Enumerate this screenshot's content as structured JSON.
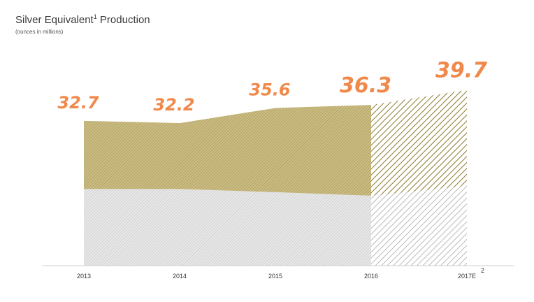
{
  "header": {
    "title": "Silver Equivalent",
    "title_footnote": "1",
    "title_suffix": " Production",
    "subtitle": "(ounces in millions)"
  },
  "chart_data": {
    "type": "area",
    "title": "Silver Equivalent¹ Production",
    "subtitle": "(ounces in millions)",
    "categories": [
      "2013",
      "2014",
      "2015",
      "2016",
      "2017E"
    ],
    "x_label_footnotes": [
      "",
      "",
      "",
      "",
      "2"
    ],
    "estimate_from_index": 3,
    "totals": [
      32.7,
      32.2,
      35.6,
      36.3,
      39.7
    ],
    "total_labels": [
      "32.7",
      "32.2",
      "35.6",
      "36.3",
      "39.7"
    ],
    "series": [
      {
        "values": [
          17.3,
          17.3,
          16.6,
          15.8,
          18.0
        ],
        "color": "#c9c9c9",
        "pattern": "diagonal-hatch"
      },
      {
        "values": [
          15.4,
          14.9,
          19.0,
          20.5,
          21.7
        ],
        "color": "#b3a25a",
        "pattern": "diagonal-hatch"
      }
    ],
    "ylim": [
      0,
      45
    ],
    "grid": false,
    "legend": "none",
    "colors": {
      "label": "#f0894a",
      "axis": "#cfcfcf",
      "tick": "#333333"
    }
  }
}
